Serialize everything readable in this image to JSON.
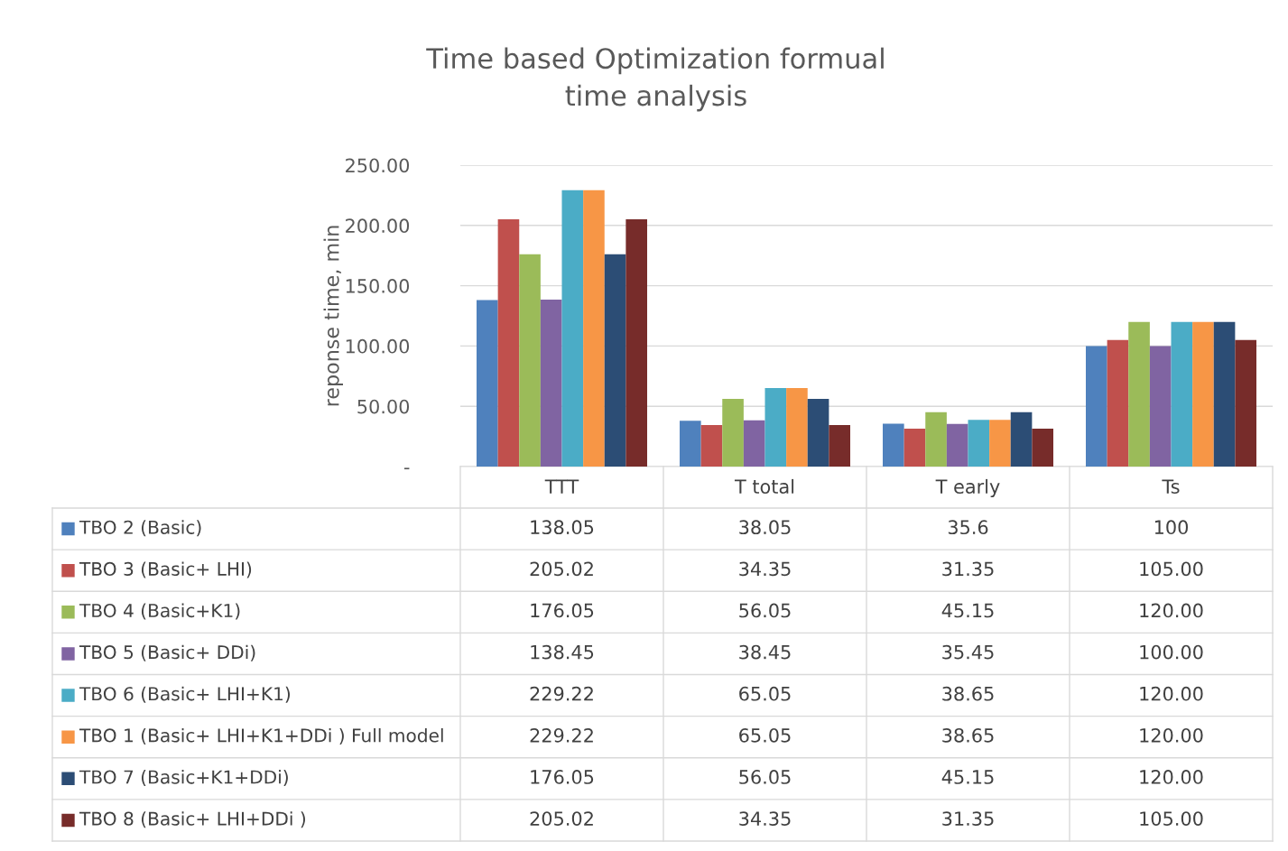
{
  "chart_data": {
    "type": "bar",
    "title": "Time based Optimization formual\ntime analysis",
    "ylabel": "reponse time, min",
    "categories": [
      "TTT",
      "T total",
      "T early",
      "Ts"
    ],
    "ylim": [
      0,
      250
    ],
    "yticks": [
      {
        "value": 0,
        "label": "-"
      },
      {
        "value": 50,
        "label": "50.00"
      },
      {
        "value": 100,
        "label": "100.00"
      },
      {
        "value": 150,
        "label": "150.00"
      },
      {
        "value": 200,
        "label": "200.00"
      },
      {
        "value": 250,
        "label": "250.00"
      }
    ],
    "grid": "y",
    "legend": "bottom left",
    "series": [
      {
        "name": "TBO 2 (Basic)",
        "color": "#4f81bd",
        "values": [
          138.05,
          38.05,
          35.6,
          100
        ],
        "value_labels": [
          "138.05",
          "38.05",
          "35.6",
          "100"
        ]
      },
      {
        "name": "TBO 3 (Basic+ LHI)",
        "color": "#c0504d",
        "values": [
          205.02,
          34.35,
          31.35,
          105.0
        ],
        "value_labels": [
          "205.02",
          "34.35",
          "31.35",
          "105.00"
        ]
      },
      {
        "name": "TBO 4 (Basic+K1)",
        "color": "#9bbb59",
        "values": [
          176.05,
          56.05,
          45.15,
          120.0
        ],
        "value_labels": [
          "176.05",
          "56.05",
          "45.15",
          "120.00"
        ]
      },
      {
        "name": "TBO 5 (Basic+ DDi)",
        "color": "#8064a2",
        "values": [
          138.45,
          38.45,
          35.45,
          100.0
        ],
        "value_labels": [
          "138.45",
          "38.45",
          "35.45",
          "100.00"
        ]
      },
      {
        "name": "TBO 6 (Basic+ LHI+K1)",
        "color": "#4bacc6",
        "values": [
          229.22,
          65.05,
          38.65,
          120.0
        ],
        "value_labels": [
          "229.22",
          "65.05",
          "38.65",
          "120.00"
        ]
      },
      {
        "name": "TBO 1 (Basic+ LHI+K1+DDi ) Full model",
        "color": "#f79646",
        "values": [
          229.22,
          65.05,
          38.65,
          120.0
        ],
        "value_labels": [
          "229.22",
          "65.05",
          "38.65",
          "120.00"
        ]
      },
      {
        "name": "TBO 7 (Basic+K1+DDi)",
        "color": "#2c4d75",
        "values": [
          176.05,
          56.05,
          45.15,
          120.0
        ],
        "value_labels": [
          "176.05",
          "56.05",
          "45.15",
          "120.00"
        ]
      },
      {
        "name": "TBO 8 (Basic+ LHI+DDi )",
        "color": "#772c2a",
        "values": [
          205.02,
          34.35,
          31.35,
          105.0
        ],
        "value_labels": [
          "205.02",
          "34.35",
          "31.35",
          "105.00"
        ]
      }
    ]
  }
}
